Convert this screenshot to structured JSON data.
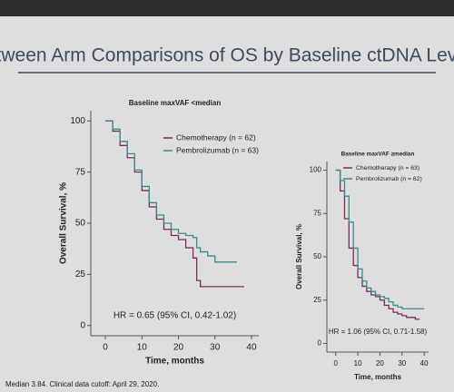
{
  "title": "Between Arm Comparisons of OS by Baseline ctDNA Levels",
  "footnote": "Median 3.84. Clinical data cutoff: April 29, 2020.",
  "chart_data": [
    {
      "type": "line",
      "step": true,
      "subtitle": "Baseline maxVAF <median",
      "x": [
        0,
        2,
        4,
        6,
        8,
        10,
        12,
        14,
        16,
        18,
        20,
        22,
        24,
        25,
        26,
        28,
        30,
        32,
        34,
        36,
        38
      ],
      "series": [
        {
          "name": "Chemotherapy (n = 62)",
          "color": "#7a2e5c",
          "values": [
            100,
            95,
            88,
            82,
            75,
            66,
            58,
            52,
            47,
            44,
            42,
            38,
            33,
            22,
            19,
            19,
            19,
            19,
            19,
            19,
            19
          ]
        },
        {
          "name": "Pembrolizumab (n = 63)",
          "color": "#3f8a8a",
          "values": [
            100,
            96,
            90,
            84,
            76,
            68,
            60,
            54,
            50,
            47,
            45,
            44,
            43,
            38,
            36,
            34,
            31,
            31,
            31,
            31,
            null
          ]
        }
      ],
      "xlim": [
        -4,
        42
      ],
      "ylim": [
        -5,
        105
      ],
      "xticks": [
        0,
        10,
        20,
        30,
        40
      ],
      "yticks": [
        0,
        25,
        50,
        75,
        100
      ],
      "x_label": "Time, months",
      "y_label": "Overall Survival, %",
      "annotation": "HR = 0.65 (95% CI, 0.42-1.02)"
    },
    {
      "type": "line",
      "step": true,
      "subtitle": "Baseline maxVAF ≥median",
      "x": [
        0,
        2,
        4,
        6,
        8,
        10,
        12,
        14,
        16,
        18,
        20,
        22,
        24,
        26,
        28,
        30,
        32,
        34,
        36,
        38,
        40
      ],
      "series": [
        {
          "name": "Chemotherapy (n = 63)",
          "color": "#7a2e5c",
          "values": [
            100,
            88,
            72,
            55,
            45,
            38,
            33,
            30,
            28,
            27,
            25,
            22,
            20,
            18,
            17,
            16,
            15,
            15,
            14,
            14,
            null
          ]
        },
        {
          "name": "Pembrolizumab (n = 62)",
          "color": "#3f8a8a",
          "values": [
            100,
            94,
            85,
            70,
            55,
            43,
            36,
            32,
            30,
            28,
            27,
            26,
            24,
            22,
            21,
            20,
            20,
            20,
            20,
            20,
            20
          ]
        }
      ],
      "xlim": [
        -4,
        42
      ],
      "ylim": [
        -5,
        105
      ],
      "xticks": [
        0,
        10,
        20,
        30,
        40
      ],
      "yticks": [
        0,
        25,
        50,
        75,
        100
      ],
      "x_label": "Time, months",
      "y_label": "Overall Survival, %",
      "annotation": "HR = 1.06 (95% CI, 0.71-1.58)"
    }
  ]
}
